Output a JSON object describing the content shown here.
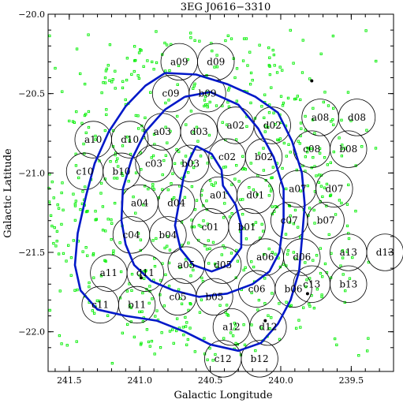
{
  "chart_data": {
    "type": "scatter",
    "title": "3EG J0616−3310",
    "xlabel": "Galactic Longitude",
    "ylabel": "Galactic Latitude",
    "xlim": [
      241.65,
      239.2
    ],
    "ylim": [
      -22.25,
      -20.0
    ],
    "xticks": [
      241.5,
      241.0,
      240.5,
      240.0,
      239.5
    ],
    "xtick_labels": [
      "241.5",
      "241.0",
      "240.5",
      "240.0",
      "239.5"
    ],
    "yticks": [
      -20.0,
      -20.5,
      -21.0,
      -21.5,
      -22.0
    ],
    "ytick_labels": [
      "−20.0",
      "−20.5",
      "−21.0",
      "−21.5",
      "−22.0"
    ],
    "circle_radius_deg": 0.13,
    "colors": {
      "sources": "#00ee00",
      "contours": "#0018c8",
      "circles": "#000000",
      "stars": "#000000"
    },
    "fields": [
      {
        "label": "a09",
        "x": 240.72,
        "y": -20.3
      },
      {
        "label": "d09",
        "x": 240.46,
        "y": -20.3
      },
      {
        "label": "c09",
        "x": 240.78,
        "y": -20.5
      },
      {
        "label": "b09",
        "x": 240.52,
        "y": -20.5
      },
      {
        "label": "a08",
        "x": 239.72,
        "y": -20.65
      },
      {
        "label": "d08",
        "x": 239.46,
        "y": -20.65
      },
      {
        "label": "a03",
        "x": 240.84,
        "y": -20.74
      },
      {
        "label": "d03",
        "x": 240.58,
        "y": -20.74
      },
      {
        "label": "a02",
        "x": 240.32,
        "y": -20.7
      },
      {
        "label": "d02",
        "x": 240.06,
        "y": -20.7
      },
      {
        "label": "a10",
        "x": 241.33,
        "y": -20.79
      },
      {
        "label": "d10",
        "x": 241.07,
        "y": -20.79
      },
      {
        "label": "c08",
        "x": 239.78,
        "y": -20.85
      },
      {
        "label": "b08",
        "x": 239.52,
        "y": -20.85
      },
      {
        "label": "c03",
        "x": 240.9,
        "y": -20.94
      },
      {
        "label": "b03",
        "x": 240.64,
        "y": -20.94
      },
      {
        "label": "c02",
        "x": 240.38,
        "y": -20.9
      },
      {
        "label": "b02",
        "x": 240.12,
        "y": -20.9
      },
      {
        "label": "c10",
        "x": 241.39,
        "y": -20.99
      },
      {
        "label": "b10",
        "x": 241.13,
        "y": -20.99
      },
      {
        "label": "a07",
        "x": 239.88,
        "y": -21.1
      },
      {
        "label": "d07",
        "x": 239.62,
        "y": -21.1
      },
      {
        "label": "a01",
        "x": 240.44,
        "y": -21.14
      },
      {
        "label": "d01",
        "x": 240.18,
        "y": -21.14
      },
      {
        "label": "a04",
        "x": 241.0,
        "y": -21.19
      },
      {
        "label": "d04",
        "x": 240.74,
        "y": -21.19
      },
      {
        "label": "c07",
        "x": 239.94,
        "y": -21.3
      },
      {
        "label": "b07",
        "x": 239.68,
        "y": -21.3
      },
      {
        "label": "c01",
        "x": 240.5,
        "y": -21.34
      },
      {
        "label": "b01",
        "x": 240.24,
        "y": -21.34
      },
      {
        "label": "c04",
        "x": 241.06,
        "y": -21.39
      },
      {
        "label": "b04",
        "x": 240.8,
        "y": -21.39
      },
      {
        "label": "a13",
        "x": 239.52,
        "y": -21.5
      },
      {
        "label": "d13",
        "x": 239.26,
        "y": -21.5
      },
      {
        "label": "a06",
        "x": 240.11,
        "y": -21.53
      },
      {
        "label": "d06",
        "x": 239.85,
        "y": -21.53
      },
      {
        "label": "a05",
        "x": 240.67,
        "y": -21.58
      },
      {
        "label": "d05",
        "x": 240.41,
        "y": -21.58
      },
      {
        "label": "a11",
        "x": 241.22,
        "y": -21.63
      },
      {
        "label": "d11",
        "x": 240.96,
        "y": -21.63
      },
      {
        "label": "c13",
        "x": 239.78,
        "y": -21.7
      },
      {
        "label": "b13",
        "x": 239.52,
        "y": -21.7
      },
      {
        "label": "c06",
        "x": 240.17,
        "y": -21.73
      },
      {
        "label": "b06",
        "x": 239.91,
        "y": -21.73
      },
      {
        "label": "c05",
        "x": 240.73,
        "y": -21.78
      },
      {
        "label": "b05",
        "x": 240.47,
        "y": -21.78
      },
      {
        "label": "c11",
        "x": 241.28,
        "y": -21.83
      },
      {
        "label": "b11",
        "x": 241.02,
        "y": -21.83
      },
      {
        "label": "a12",
        "x": 240.35,
        "y": -21.97
      },
      {
        "label": "d12",
        "x": 240.09,
        "y": -21.97
      },
      {
        "label": "c12",
        "x": 240.41,
        "y": -22.17
      },
      {
        "label": "b12",
        "x": 240.15,
        "y": -22.17
      }
    ],
    "stars": [
      {
        "x": 239.78,
        "y": -20.42
      },
      {
        "x": 240.99,
        "y": -21.66
      },
      {
        "x": 239.81,
        "y": -21.76
      },
      {
        "x": 240.11,
        "y": -21.93
      }
    ],
    "contours": [
      [
        [
          240.6,
          -20.83
        ],
        [
          240.49,
          -20.88
        ],
        [
          240.42,
          -20.98
        ],
        [
          240.41,
          -21.08
        ],
        [
          240.32,
          -21.2
        ],
        [
          240.28,
          -21.33
        ],
        [
          240.28,
          -21.47
        ],
        [
          240.37,
          -21.58
        ],
        [
          240.49,
          -21.62
        ],
        [
          240.62,
          -21.58
        ],
        [
          240.71,
          -21.48
        ],
        [
          240.75,
          -21.33
        ],
        [
          240.72,
          -21.18
        ],
        [
          240.69,
          -21.03
        ],
        [
          240.65,
          -20.92
        ],
        [
          240.6,
          -20.83
        ]
      ],
      [
        [
          240.68,
          -20.52
        ],
        [
          240.5,
          -20.49
        ],
        [
          240.3,
          -20.57
        ],
        [
          240.16,
          -20.72
        ],
        [
          240.05,
          -20.9
        ],
        [
          239.98,
          -21.1
        ],
        [
          239.98,
          -21.3
        ],
        [
          240.01,
          -21.5
        ],
        [
          240.08,
          -21.62
        ],
        [
          240.2,
          -21.7
        ],
        [
          240.38,
          -21.76
        ],
        [
          240.58,
          -21.78
        ],
        [
          240.76,
          -21.74
        ],
        [
          240.92,
          -21.68
        ],
        [
          241.04,
          -21.58
        ],
        [
          241.1,
          -21.45
        ],
        [
          241.13,
          -21.3
        ],
        [
          241.12,
          -21.1
        ],
        [
          241.06,
          -20.92
        ],
        [
          240.96,
          -20.74
        ],
        [
          240.82,
          -20.6
        ],
        [
          240.68,
          -20.52
        ]
      ],
      [
        [
          240.82,
          -20.37
        ],
        [
          240.6,
          -20.38
        ],
        [
          240.38,
          -20.44
        ],
        [
          240.18,
          -20.52
        ],
        [
          240.02,
          -20.62
        ],
        [
          239.92,
          -20.8
        ],
        [
          239.85,
          -21.0
        ],
        [
          239.83,
          -21.2
        ],
        [
          239.85,
          -21.42
        ],
        [
          239.87,
          -21.62
        ],
        [
          239.93,
          -21.8
        ],
        [
          240.02,
          -21.95
        ],
        [
          240.14,
          -22.07
        ],
        [
          240.3,
          -22.12
        ],
        [
          240.5,
          -22.08
        ],
        [
          240.68,
          -22.0
        ],
        [
          240.88,
          -21.93
        ],
        [
          241.1,
          -21.9
        ],
        [
          241.3,
          -21.86
        ],
        [
          241.42,
          -21.74
        ],
        [
          241.46,
          -21.58
        ],
        [
          241.44,
          -21.38
        ],
        [
          241.38,
          -21.14
        ],
        [
          241.32,
          -20.94
        ],
        [
          241.22,
          -20.74
        ],
        [
          241.1,
          -20.58
        ],
        [
          240.96,
          -20.45
        ],
        [
          240.82,
          -20.37
        ]
      ]
    ]
  }
}
